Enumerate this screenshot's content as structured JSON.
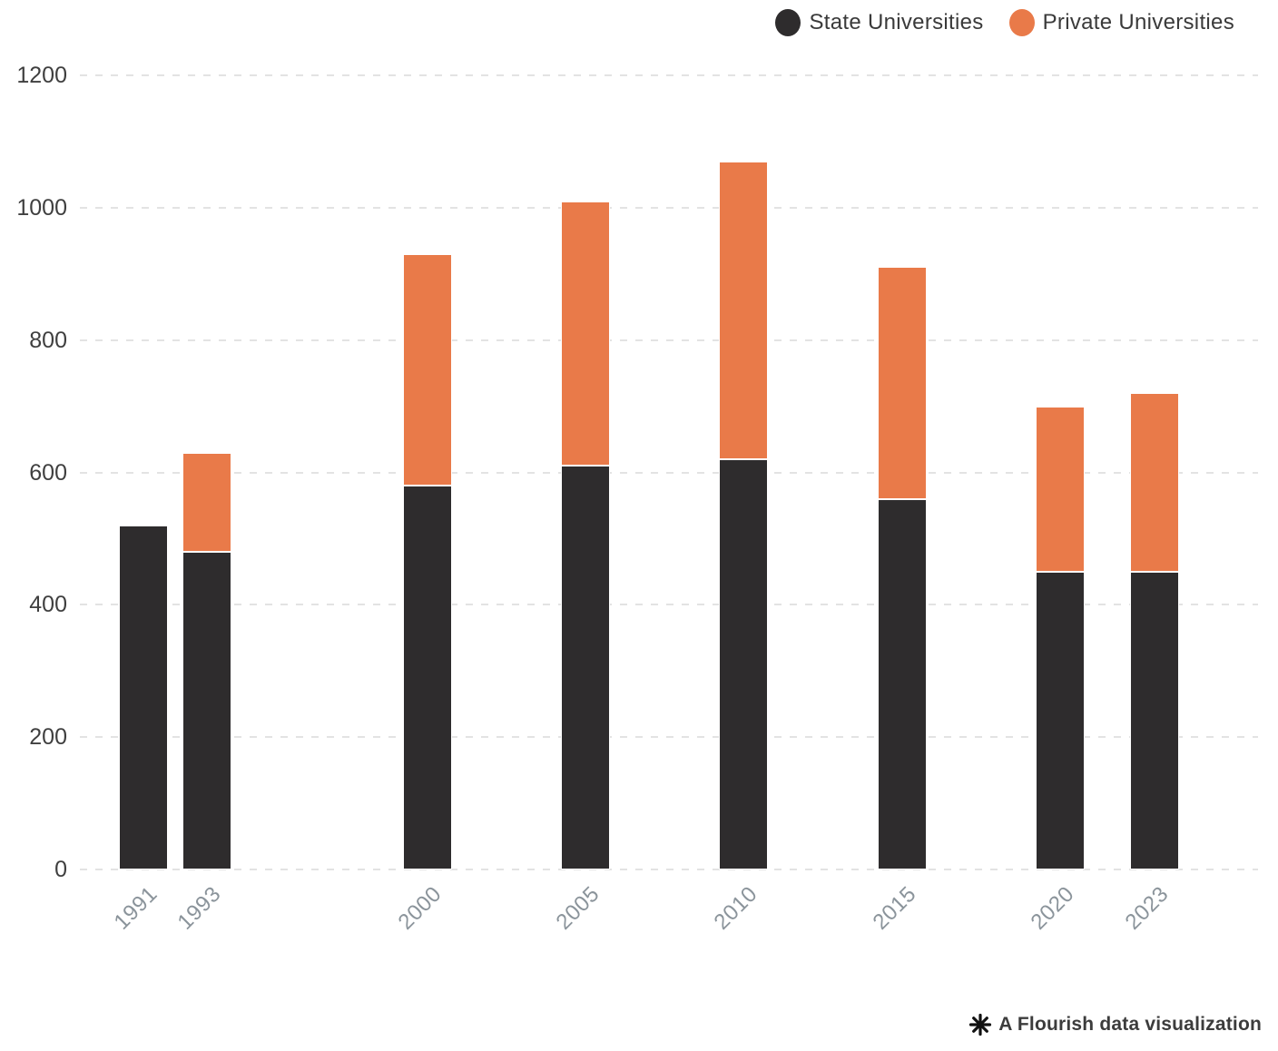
{
  "legend": {
    "items": [
      {
        "label": "State Universities",
        "color": "#2e2c2d"
      },
      {
        "label": "Private Universities",
        "color": "#e97a49"
      }
    ]
  },
  "chart_data": {
    "type": "bar",
    "stacked": true,
    "title": "",
    "xlabel": "",
    "ylabel": "",
    "categories": [
      1991,
      1993,
      2000,
      2005,
      2010,
      2015,
      2020,
      2023
    ],
    "series": [
      {
        "name": "State Universities",
        "color": "#2e2c2d",
        "values": [
          520,
          480,
          580,
          610,
          620,
          560,
          450,
          450
        ]
      },
      {
        "name": "Private Universities",
        "color": "#e97a49",
        "values": [
          0,
          150,
          350,
          400,
          450,
          350,
          250,
          270
        ]
      }
    ],
    "totals": [
      520,
      630,
      930,
      1010,
      1070,
      910,
      700,
      720
    ],
    "ylim": [
      0,
      1200
    ],
    "yticks": [
      0,
      200,
      400,
      600,
      800,
      1000,
      1200
    ],
    "grid": true,
    "gridline_style": "dashed",
    "legend_position": "top-right",
    "x_axis_type": "linear"
  },
  "footer": {
    "credit": "A Flourish data visualization"
  },
  "colors": {
    "state": "#2e2c2d",
    "private": "#e97a49",
    "gridline": "#e3e3e3",
    "y_tick_label": "#3f3f3f",
    "x_tick_label": "#8b949b",
    "background": "#ffffff"
  }
}
